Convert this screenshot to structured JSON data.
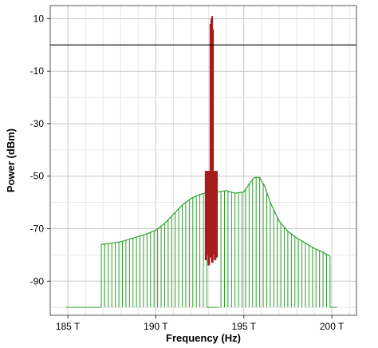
{
  "chart_data": {
    "type": "line",
    "title": "",
    "xlabel": "Frequency (Hz)",
    "ylabel": "Power (dBm)",
    "xlim": [
      184.0,
      201.4
    ],
    "ylim": [
      -103,
      15
    ],
    "x_ticks": [
      185,
      190,
      195,
      200
    ],
    "x_tick_labels": [
      "185 T",
      "190 T",
      "195 T",
      "200 T"
    ],
    "y_ticks": [
      10,
      -10,
      -30,
      -50,
      -70,
      -90
    ],
    "y_tick_labels": [
      "10",
      "-10",
      "-30",
      "-50",
      "-70",
      "-90"
    ],
    "grid": true,
    "legend": "none",
    "reference_line": {
      "y": 0,
      "color": "#000000"
    },
    "series": [
      {
        "style": "spectral-lines",
        "color": "#2ca02c",
        "floor": -100,
        "x_start": 186.9,
        "x_end": 199.9,
        "step": 0.2,
        "gap": [
          192.9,
          193.6
        ],
        "envelope": [
          [
            186.9,
            -76
          ],
          [
            187.5,
            -75.5
          ],
          [
            188.0,
            -75
          ],
          [
            188.5,
            -74
          ],
          [
            189.0,
            -73
          ],
          [
            189.5,
            -72
          ],
          [
            190.0,
            -70.5
          ],
          [
            190.5,
            -68
          ],
          [
            191.0,
            -64.5
          ],
          [
            191.5,
            -61
          ],
          [
            192.0,
            -58.5
          ],
          [
            192.5,
            -57
          ],
          [
            193.0,
            -56
          ],
          [
            193.5,
            -56
          ],
          [
            194.0,
            -55.5
          ],
          [
            194.5,
            -56.5
          ],
          [
            195.0,
            -56
          ],
          [
            195.3,
            -53
          ],
          [
            195.6,
            -50.5
          ],
          [
            195.9,
            -50.5
          ],
          [
            196.2,
            -54
          ],
          [
            196.5,
            -60
          ],
          [
            197.0,
            -67
          ],
          [
            197.5,
            -71
          ],
          [
            198.0,
            -73.5
          ],
          [
            198.5,
            -75.5
          ],
          [
            199.0,
            -77.5
          ],
          [
            199.5,
            -79
          ],
          [
            199.9,
            -80.5
          ]
        ]
      },
      {
        "style": "spectral-lines",
        "color": "#a51c1c",
        "x_start": 192.85,
        "x_end": 193.45,
        "step": 0.04,
        "envelope": [
          [
            192.85,
            -48
          ],
          [
            193.45,
            -48
          ]
        ],
        "floor_values": [
          -82,
          -78,
          -80,
          -76,
          -84,
          -79,
          -77,
          -81,
          -75,
          -83,
          -78,
          -80,
          -76,
          -82,
          -79,
          -81
        ],
        "peaks": [
          [
            193.15,
            10
          ],
          [
            193.2,
            11
          ],
          [
            193.1,
            8
          ],
          [
            193.25,
            6
          ]
        ]
      }
    ]
  }
}
